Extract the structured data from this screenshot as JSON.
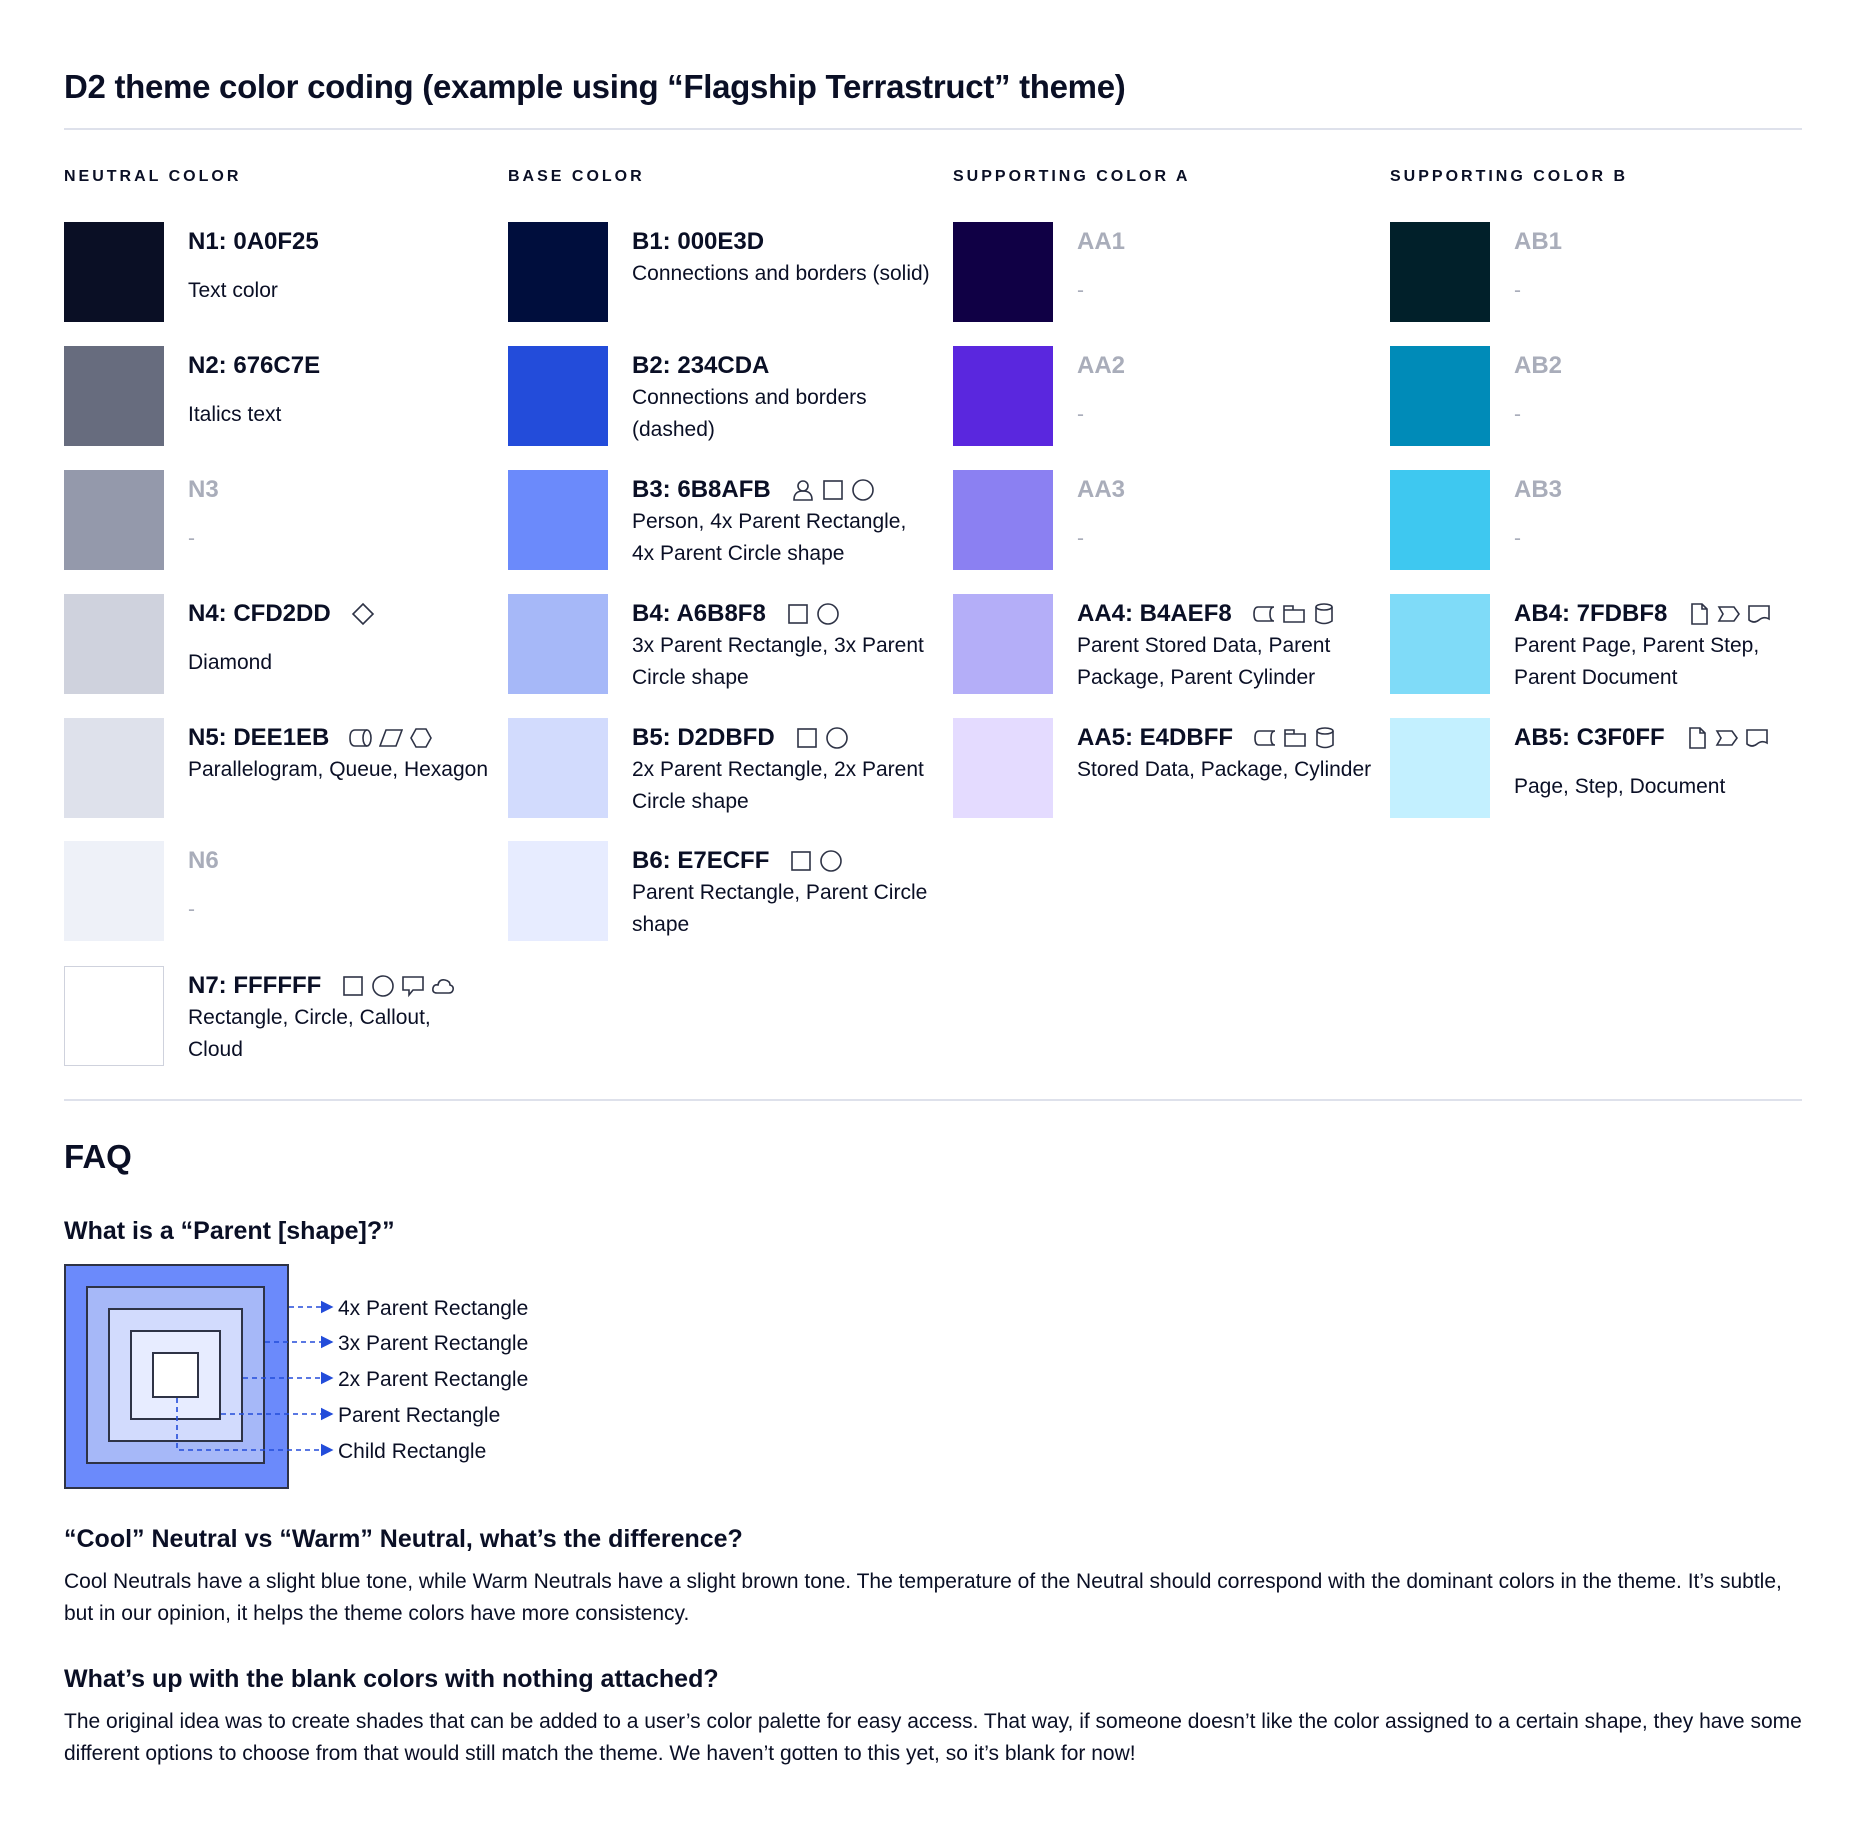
{
  "title": "D2 theme color coding (example using “Flagship Terrastruct” theme)",
  "columns": [
    {
      "header": "NEUTRAL COLOR",
      "items": [
        {
          "label": "N1: 0A0F25",
          "color": "#0A0F25",
          "desc": "Text color",
          "icons": []
        },
        {
          "label": "N2: 676C7E",
          "color": "#676C7E",
          "desc": "Italics text",
          "icons": []
        },
        {
          "label": "N3",
          "color": "#9499AB",
          "desc": "-",
          "icons": [],
          "muted": true
        },
        {
          "label": "N4: CFD2DD",
          "color": "#CFD2DD",
          "desc": "Diamond",
          "icons": [
            "diamond-icon"
          ]
        },
        {
          "label": "N5: DEE1EB",
          "color": "#DEE1EB",
          "desc": "Parallelogram, Queue, Hexagon",
          "icons": [
            "queue-icon",
            "parallelogram-icon",
            "hexagon-icon"
          ]
        },
        {
          "label": "N6",
          "color": "#EEF1F8",
          "desc": "-",
          "icons": [],
          "muted": true
        },
        {
          "label": "N7: FFFFFF",
          "color": "#FFFFFF",
          "desc": "Rectangle, Circle, Callout, Cloud",
          "icons": [
            "rectangle-icon",
            "circle-icon",
            "callout-icon",
            "cloud-icon"
          ]
        }
      ]
    },
    {
      "header": "BASE COLOR",
      "items": [
        {
          "label": "B1: 000E3D",
          "color": "#000E3D",
          "desc": "Connections and borders (solid)",
          "icons": []
        },
        {
          "label": "B2: 234CDA",
          "color": "#234CDA",
          "desc": "Connections and borders (dashed)",
          "icons": []
        },
        {
          "label": "B3: 6B8AFB",
          "color": "#6B8AFB",
          "desc": "Person, 4x Parent Rectangle, 4x Parent Circle shape",
          "icons": [
            "person-icon",
            "rectangle-icon",
            "circle-icon"
          ]
        },
        {
          "label": "B4: A6B8F8",
          "color": "#A6B8F8",
          "desc": "3x Parent Rectangle, 3x Parent Circle shape",
          "icons": [
            "rectangle-icon",
            "circle-icon"
          ]
        },
        {
          "label": "B5: D2DBFD",
          "color": "#D2DBFD",
          "desc": "2x Parent Rectangle, 2x Parent Circle shape",
          "icons": [
            "rectangle-icon",
            "circle-icon"
          ]
        },
        {
          "label": "B6: E7ECFF",
          "color": "#E7ECFF",
          "desc": "Parent Rectangle, Parent Circle shape",
          "icons": [
            "rectangle-icon",
            "circle-icon"
          ]
        }
      ]
    },
    {
      "header": "SUPPORTING COLOR A",
      "items": [
        {
          "label": "AA1",
          "color": "#100045",
          "desc": "-",
          "icons": [],
          "muted": true
        },
        {
          "label": "AA2",
          "color": "#5A27DE",
          "desc": "-",
          "icons": [],
          "muted": true
        },
        {
          "label": "AA3",
          "color": "#8B80F2",
          "desc": "-",
          "icons": [],
          "muted": true
        },
        {
          "label": "AA4: B4AEF8",
          "color": "#B4AEF8",
          "desc": "Parent Stored Data, Parent Package,  Parent Cylinder",
          "icons": [
            "stored-data-icon",
            "package-icon",
            "cylinder-icon"
          ]
        },
        {
          "label": "AA5: E4DBFF",
          "color": "#E4DBFF",
          "desc": "Stored Data, Package, Cylinder",
          "icons": [
            "stored-data-icon",
            "package-icon",
            "cylinder-icon"
          ]
        }
      ]
    },
    {
      "header": "SUPPORTING COLOR B",
      "items": [
        {
          "label": "AB1",
          "color": "#01202A",
          "desc": "-",
          "icons": [],
          "muted": true
        },
        {
          "label": "AB2",
          "color": "#008BB8",
          "desc": "-",
          "icons": [],
          "muted": true
        },
        {
          "label": "AB3",
          "color": "#3EC8F0",
          "desc": "-",
          "icons": [],
          "muted": true
        },
        {
          "label": "AB4: 7FDBF8",
          "color": "#7FDBF8",
          "desc": "Parent Page, Parent Step, Parent Document",
          "icons": [
            "page-icon",
            "step-icon",
            "document-icon"
          ]
        },
        {
          "label": "AB5: C3F0FF",
          "color": "#C3F0FF",
          "desc": "Page, Step, Document",
          "icons": [
            "page-icon",
            "step-icon",
            "document-icon"
          ]
        }
      ]
    }
  ],
  "faq": {
    "title": "FAQ",
    "q1": "What is a “Parent [shape]?”",
    "diagram_labels": [
      "4x Parent Rectangle",
      "3x Parent Rectangle",
      "2x Parent Rectangle",
      "Parent Rectangle",
      "Child Rectangle"
    ],
    "q2": "“Cool” Neutral vs “Warm” Neutral, what’s the difference?",
    "a2": "Cool Neutrals have a slight blue tone, while Warm Neutrals have a slight brown tone. The temperature of the Neutral should correspond with the dominant colors in the theme. It’s subtle, but in our opinion, it helps the theme colors have more consistency.",
    "q3": "What’s up with the blank colors with nothing attached?",
    "a3": "The original idea was to create shades that can be added to a user’s color palette for easy access. That way, if someone doesn’t like the color assigned to a certain shape, they have some different options to choose from that would still match the theme. We haven’t gotten to this yet, so it’s blank for now!"
  }
}
